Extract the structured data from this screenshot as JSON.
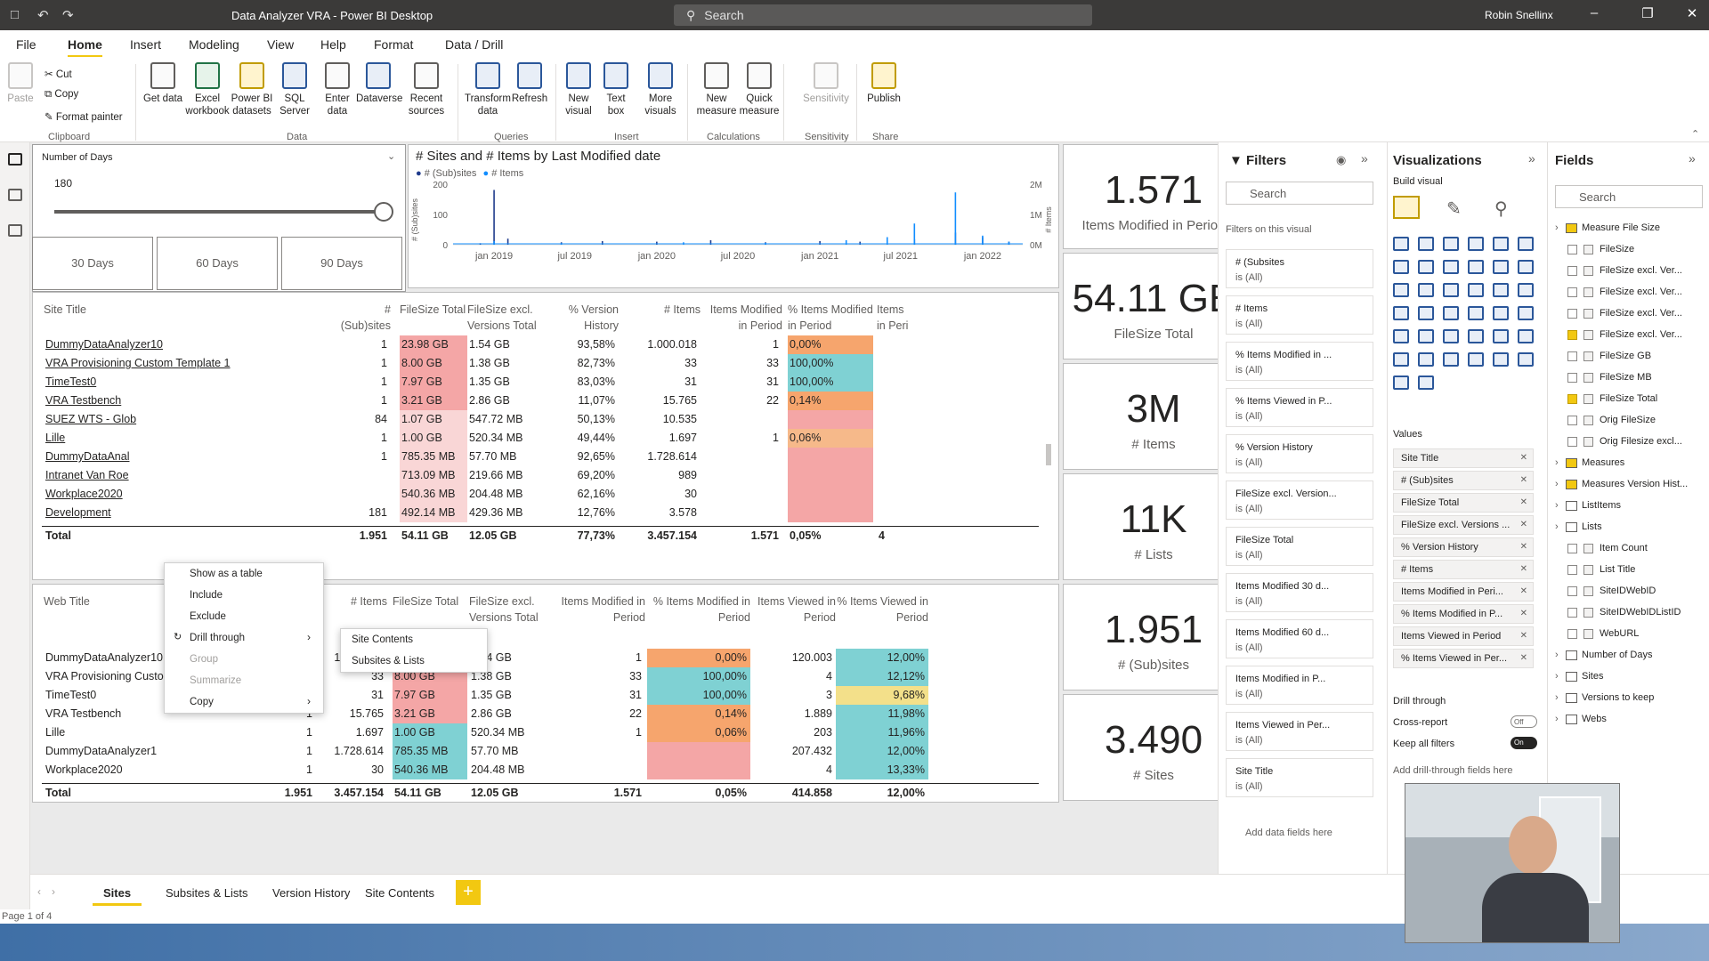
{
  "window": {
    "title": "Data Analyzer VRA - Power BI Desktop",
    "search_placeholder": "Search",
    "user": "Robin Snellinx"
  },
  "menu": [
    "File",
    "Home",
    "Insert",
    "Modeling",
    "View",
    "Help",
    "Format",
    "Data / Drill"
  ],
  "ribbon": {
    "clipboard": {
      "paste": "Paste",
      "cut": "Cut",
      "copy": "Copy",
      "format_painter": "Format painter",
      "group": "Clipboard"
    },
    "data_buttons": [
      "Get data",
      "Excel workbook",
      "Power BI datasets",
      "SQL Server",
      "Enter data",
      "Dataverse",
      "Recent sources"
    ],
    "data_group": "Data",
    "queries_buttons": [
      "Transform data",
      "Refresh"
    ],
    "queries_group": "Queries",
    "insert_buttons": [
      "New visual",
      "Text box",
      "More visuals"
    ],
    "insert_group": "Insert",
    "calc_buttons": [
      "New measure",
      "Quick measure"
    ],
    "calc_group": "Calculations",
    "sensitivity": "Sensitivity",
    "sensitivity_group": "Sensitivity",
    "publish": "Publish",
    "share_group": "Share"
  },
  "slicer": {
    "title": "Number of Days",
    "value": "180",
    "buttons": [
      "30 Days",
      "60 Days",
      "90 Days"
    ],
    "level": 1.0
  },
  "chart_data": {
    "type": "line",
    "title": "# Sites and # Items by Last Modified date",
    "legend": [
      "# (Sub)sites",
      "# Items"
    ],
    "x_ticks": [
      "jan 2019",
      "jul 2019",
      "jan 2020",
      "jul 2020",
      "jan 2021",
      "jul 2021",
      "jan 2022"
    ],
    "y_left_ticks": [
      "200",
      "100",
      "0"
    ],
    "y_left_label": "# (Sub)sites",
    "y_right_ticks": [
      "2M",
      "1M",
      "0M"
    ],
    "y_right_label": "# Items",
    "ylim_left": [
      0,
      200
    ],
    "ylim_right": [
      0,
      2000000
    ],
    "series": [
      {
        "name": "# (Sub)sites",
        "color": "#1f3b8c",
        "x": [
          "2018-12",
          "2019-01",
          "2019-02",
          "2019-06",
          "2019-09",
          "2020-01",
          "2020-05",
          "2020-09",
          "2021-01",
          "2021-04",
          "2021-08",
          "2021-11",
          "2022-01",
          "2022-03"
        ],
        "values": [
          5,
          181,
          20,
          8,
          12,
          10,
          15,
          8,
          12,
          10,
          18,
          40,
          25,
          10
        ]
      },
      {
        "name": "# Items",
        "color": "#118dff",
        "x": [
          "2019-01",
          "2019-06",
          "2020-03",
          "2020-09",
          "2021-03",
          "2021-06",
          "2021-08",
          "2021-11",
          "2022-01",
          "2022-03"
        ],
        "values": [
          120000,
          50000,
          80000,
          60000,
          150000,
          250000,
          700000,
          1728614,
          300000,
          100000
        ]
      }
    ]
  },
  "kpis": [
    {
      "value": "1.571",
      "label": "Items Modified in Period"
    },
    {
      "value": "54.11 GB",
      "label": "FileSize Total"
    },
    {
      "value": "3M",
      "label": "# Items"
    },
    {
      "value": "11K",
      "label": "# Lists"
    },
    {
      "value": "1.951",
      "label": "# (Sub)sites"
    },
    {
      "value": "3.490",
      "label": "# Sites"
    }
  ],
  "table1": {
    "headers": [
      "Site Title",
      "# (Sub)sites",
      "FileSize Total",
      "FileSize excl. Versions Total",
      "% Version History",
      "# Items",
      "Items Modified in Period",
      "% Items Modified in Period",
      "Items in Peri"
    ],
    "rows": [
      [
        "DummyDataAnalyzer10",
        "1",
        "23.98 GB",
        "1.54 GB",
        "93,58%",
        "1.000.018",
        "1",
        "0,00%"
      ],
      [
        "VRA Provisioning Custom Template 1",
        "1",
        "8.00 GB",
        "1.38 GB",
        "82,73%",
        "33",
        "33",
        "100,00%"
      ],
      [
        "TimeTest0",
        "1",
        "7.97 GB",
        "1.35 GB",
        "83,03%",
        "31",
        "31",
        "100,00%"
      ],
      [
        "VRA Testbench",
        "1",
        "3.21 GB",
        "2.86 GB",
        "11,07%",
        "15.765",
        "22",
        "0,14%"
      ],
      [
        "SUEZ WTS - Glob",
        "84",
        "1.07 GB",
        "547.72 MB",
        "50,13%",
        "10.535",
        "",
        ""
      ],
      [
        "Lille",
        "1",
        "1.00 GB",
        "520.34 MB",
        "49,44%",
        "1.697",
        "1",
        "0,06%"
      ],
      [
        "DummyDataAnal",
        "1",
        "785.35 MB",
        "57.70 MB",
        "92,65%",
        "1.728.614",
        "",
        ""
      ],
      [
        "Intranet Van Roe",
        "",
        "713.09 MB",
        "219.66 MB",
        "69,20%",
        "989",
        "",
        ""
      ],
      [
        "Workplace2020",
        "",
        "540.36 MB",
        "204.48 MB",
        "62,16%",
        "30",
        "",
        ""
      ],
      [
        "Development",
        "181",
        "492.14 MB",
        "429.36 MB",
        "12,76%",
        "3.578",
        "",
        ""
      ]
    ],
    "total": [
      "Total",
      "1.951",
      "54.11 GB",
      "12.05 GB",
      "77,73%",
      "3.457.154",
      "1.571",
      "0,05%",
      "4"
    ]
  },
  "table2": {
    "headers": [
      "Web Title",
      "# (Sub)sites",
      "# Items",
      "FileSize Total",
      "FileSize excl. Versions Total",
      "Items Modified in Period",
      "% Items Modified in Period",
      "Items Viewed in Period",
      "% Items Viewed in Period"
    ],
    "rows": [
      [
        "DummyDataAnalyzer10",
        "1",
        "1.000.018",
        "23.98 GB",
        "1.54 GB",
        "1",
        "0,00%",
        "120.003",
        "12,00%"
      ],
      [
        "VRA Provisioning Custom Template 1",
        "1",
        "33",
        "8.00 GB",
        "1.38 GB",
        "33",
        "100,00%",
        "4",
        "12,12%"
      ],
      [
        "TimeTest0",
        "1",
        "31",
        "7.97 GB",
        "1.35 GB",
        "31",
        "100,00%",
        "3",
        "9,68%"
      ],
      [
        "VRA Testbench",
        "1",
        "15.765",
        "3.21 GB",
        "2.86 GB",
        "22",
        "0,14%",
        "1.889",
        "11,98%"
      ],
      [
        "Lille",
        "1",
        "1.697",
        "1.00 GB",
        "520.34 MB",
        "1",
        "0,06%",
        "203",
        "11,96%"
      ],
      [
        "DummyDataAnalyzer1",
        "1",
        "1.728.614",
        "785.35 MB",
        "57.70 MB",
        "",
        "",
        "207.432",
        "12,00%"
      ],
      [
        "Workplace2020",
        "1",
        "30",
        "540.36 MB",
        "204.48 MB",
        "",
        "",
        "4",
        "13,33%"
      ]
    ],
    "total": [
      "Total",
      "1.951",
      "3.457.154",
      "54.11 GB",
      "12.05 GB",
      "1.571",
      "0,05%",
      "414.858",
      "12,00%"
    ]
  },
  "context_menu": {
    "items": [
      "Show as a table",
      "Include",
      "Exclude",
      "Drill through",
      "Group",
      "Summarize",
      "Copy"
    ],
    "submenu": [
      "Site Contents",
      "Subsites & Lists"
    ]
  },
  "filters": {
    "title": "Filters",
    "search": "Search",
    "section": "Filters on this visual",
    "cards": [
      [
        "# (Subsites",
        "is (All)"
      ],
      [
        "# Items",
        "is (All)"
      ],
      [
        "% Items Modified in ...",
        "is (All)"
      ],
      [
        "% Items Viewed in P...",
        "is (All)"
      ],
      [
        "% Version History",
        "is (All)"
      ],
      [
        "FileSize excl. Version...",
        "is (All)"
      ],
      [
        "FileSize Total",
        "is (All)"
      ],
      [
        "Items Modified 30 d...",
        "is (All)"
      ],
      [
        "Items Modified 60 d...",
        "is (All)"
      ],
      [
        "Items Modified in P...",
        "is (All)"
      ],
      [
        "Items Viewed in Per...",
        "is (All)"
      ],
      [
        "Site Title",
        "is (All)"
      ]
    ],
    "add": "Add data fields here"
  },
  "visualizations": {
    "title": "Visualizations",
    "build": "Build visual",
    "values_label": "Values",
    "wells": [
      "Site Title",
      "# (Sub)sites",
      "FileSize Total",
      "FileSize excl. Versions ...",
      "% Version History",
      "# Items",
      "Items Modified in Peri...",
      "% Items Modified in P...",
      "Items Viewed in Period",
      "% Items Viewed in Per..."
    ],
    "drill": "Drill through",
    "cross": "Cross-report",
    "cross_state": "Off",
    "keep": "Keep all filters",
    "keep_state": "On",
    "add_drill": "Add drill-through fields here"
  },
  "fields": {
    "title": "Fields",
    "search": "Search",
    "items": [
      {
        "t": "Measure File Size",
        "lvl": 0,
        "cb": false,
        "tbl": true
      },
      {
        "t": "FileSize",
        "lvl": 1,
        "cb": true,
        "on": false
      },
      {
        "t": "FileSize excl. Ver...",
        "lvl": 1,
        "cb": true,
        "on": false
      },
      {
        "t": "FileSize excl. Ver...",
        "lvl": 1,
        "cb": true,
        "on": false
      },
      {
        "t": "FileSize excl. Ver...",
        "lvl": 1,
        "cb": true,
        "on": false
      },
      {
        "t": "FileSize excl. Ver...",
        "lvl": 1,
        "cb": true,
        "on": true
      },
      {
        "t": "FileSize GB",
        "lvl": 1,
        "cb": true,
        "on": false
      },
      {
        "t": "FileSize MB",
        "lvl": 1,
        "cb": true,
        "on": false
      },
      {
        "t": "FileSize Total",
        "lvl": 1,
        "cb": true,
        "on": true
      },
      {
        "t": "Orig FileSize",
        "lvl": 1,
        "cb": true,
        "on": false
      },
      {
        "t": "Orig Filesize excl...",
        "lvl": 1,
        "cb": true,
        "on": false
      },
      {
        "t": "Measures",
        "lvl": 0,
        "cb": false,
        "tbl": true
      },
      {
        "t": "Measures Version Hist...",
        "lvl": 0,
        "cb": false,
        "tbl": true
      },
      {
        "t": "ListItems",
        "lvl": 0,
        "cb": false,
        "tbl": true
      },
      {
        "t": "Lists",
        "lvl": 0,
        "cb": false,
        "tbl": true
      },
      {
        "t": "Item Count",
        "lvl": 1,
        "cb": true,
        "on": false
      },
      {
        "t": "List Title",
        "lvl": 1,
        "cb": true,
        "on": false
      },
      {
        "t": "SiteIDWebID",
        "lvl": 1,
        "cb": true,
        "on": false
      },
      {
        "t": "SiteIDWebIDListID",
        "lvl": 1,
        "cb": true,
        "on": false
      },
      {
        "t": "WebURL",
        "lvl": 1,
        "cb": true,
        "on": false
      },
      {
        "t": "Number of Days",
        "lvl": 0,
        "cb": false,
        "tbl": true
      },
      {
        "t": "Sites",
        "lvl": 0,
        "cb": false,
        "tbl": true
      },
      {
        "t": "Versions to keep",
        "lvl": 0,
        "cb": false,
        "tbl": true
      },
      {
        "t": "Webs",
        "lvl": 0,
        "cb": false,
        "tbl": true
      }
    ]
  },
  "tabs": [
    "Sites",
    "Subsites & Lists",
    "Version History",
    "Site Contents"
  ],
  "active_tab": 0,
  "status": "Page 1 of 4",
  "colors": {
    "accent": "#f2c811",
    "pink": "#f4a6a6",
    "teal": "#7fd1d3",
    "orange": "#f6a56d",
    "gold": "#f3e08a",
    "title": "#3b3a39"
  }
}
